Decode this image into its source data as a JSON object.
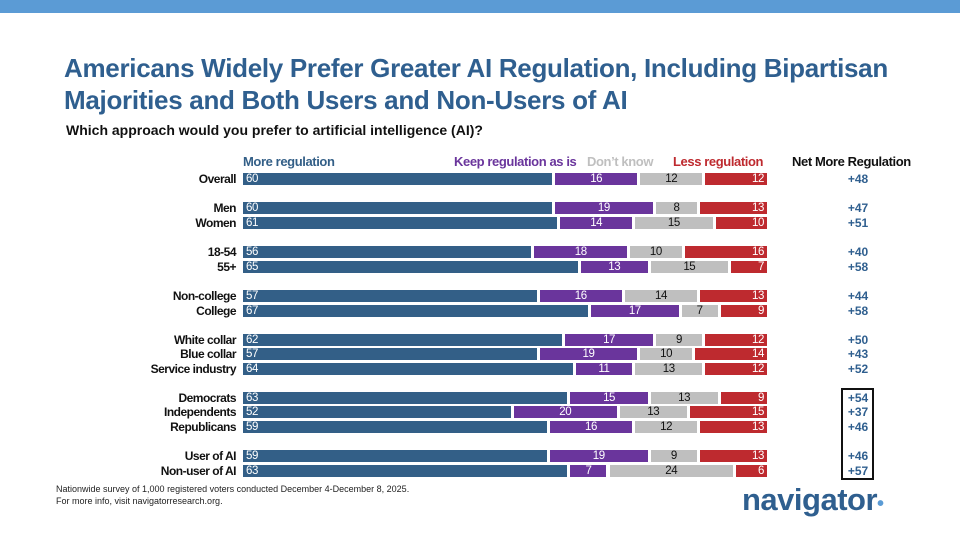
{
  "title": "Americans Widely Prefer Greater AI Regulation, Including Bipartisan Majorities and Both Users and Non-Users of AI",
  "question": "Which approach would you prefer to artificial intelligence (AI)?",
  "footnote_1": "Nationwide survey of 1,000 registered voters conducted December 4-December 8, 2025.",
  "footnote_2": "For more info, visit navigatorresearch.org.",
  "logo_text": "navigator",
  "net_header": "Net More Regulation",
  "colors": {
    "more": "#335f87",
    "keep": "#6a359c",
    "dontknow": "#bfbfbf",
    "less": "#be2a2f",
    "net": "#2f5f8f",
    "band": "#5b9bd5"
  },
  "chart_data": {
    "type": "bar",
    "stacked": true,
    "orientation": "horizontal",
    "series_names": [
      "More regulation",
      "Keep regulation as is",
      "Don’t know",
      "Less regulation"
    ],
    "categories": [
      "Overall",
      "Men",
      "Women",
      "18-54",
      "55+",
      "Non-college",
      "College",
      "White collar",
      "Blue collar",
      "Service industry",
      "Democrats",
      "Independents",
      "Republicans",
      "User of AI",
      "Non-user of AI"
    ],
    "series": [
      {
        "name": "More regulation",
        "values": [
          60,
          60,
          61,
          56,
          65,
          57,
          67,
          62,
          57,
          64,
          63,
          52,
          59,
          59,
          63
        ]
      },
      {
        "name": "Keep regulation as is",
        "values": [
          16,
          19,
          14,
          18,
          13,
          16,
          17,
          17,
          19,
          11,
          15,
          20,
          16,
          19,
          7
        ]
      },
      {
        "name": "Don’t know",
        "values": [
          12,
          8,
          15,
          10,
          15,
          14,
          7,
          9,
          10,
          13,
          13,
          13,
          12,
          9,
          24
        ]
      },
      {
        "name": "Less regulation",
        "values": [
          12,
          13,
          10,
          16,
          7,
          13,
          9,
          12,
          14,
          12,
          9,
          15,
          13,
          13,
          6
        ]
      }
    ],
    "net": [
      "+48",
      "+47",
      "+51",
      "+40",
      "+58",
      "+44",
      "+58",
      "+50",
      "+43",
      "+52",
      "+54",
      "+37",
      "+46",
      "+46",
      "+57"
    ],
    "boxed_net_categories": [
      "Democrats",
      "Independents",
      "Republicans",
      "User of AI",
      "Non-user of AI"
    ]
  }
}
